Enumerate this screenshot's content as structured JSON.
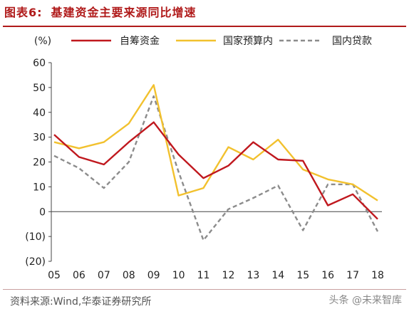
{
  "figure": {
    "number": "图表6:",
    "title": "基建资金主要来源同比增速"
  },
  "source_note": "资料来源:Wind,华泰证券研究所",
  "watermark": "头条 @未来智库",
  "colors": {
    "title": "#b01a1a",
    "series_self_raised": "#c0181e",
    "series_budget": "#f2c12e",
    "series_domestic_loans": "#8c8c8c"
  },
  "chart_data": {
    "type": "line",
    "y_unit_label": "(%)",
    "x": [
      "05",
      "06",
      "07",
      "08",
      "09",
      "10",
      "11",
      "12",
      "13",
      "14",
      "15",
      "16",
      "17",
      "18"
    ],
    "ylim": [
      -20,
      60
    ],
    "yticks": [
      60,
      50,
      40,
      30,
      20,
      10,
      0,
      -10,
      -20
    ],
    "ytick_labels": [
      "60",
      "50",
      "40",
      "30",
      "20",
      "10",
      "0",
      "(10)",
      "(20)"
    ],
    "grid": false,
    "legend_position": "top",
    "series": [
      {
        "name": "自筹资金",
        "style": "solid",
        "color": "#c0181e",
        "values": [
          31,
          22,
          19,
          28,
          36,
          23,
          13.5,
          18.5,
          28,
          21,
          20.5,
          2.5,
          7,
          -3
        ]
      },
      {
        "name": "国家预算内",
        "style": "solid",
        "color": "#f2c12e",
        "values": [
          28,
          25.5,
          28,
          35.5,
          51,
          6.5,
          9.5,
          26,
          21,
          29,
          17,
          13,
          11,
          4.5
        ]
      },
      {
        "name": "国内贷款",
        "style": "dashed",
        "color": "#8c8c8c",
        "values": [
          22.5,
          17.5,
          9.5,
          20,
          46.5,
          16,
          -11.5,
          1,
          5.5,
          10.5,
          -7.5,
          11,
          11,
          -8
        ]
      }
    ]
  }
}
